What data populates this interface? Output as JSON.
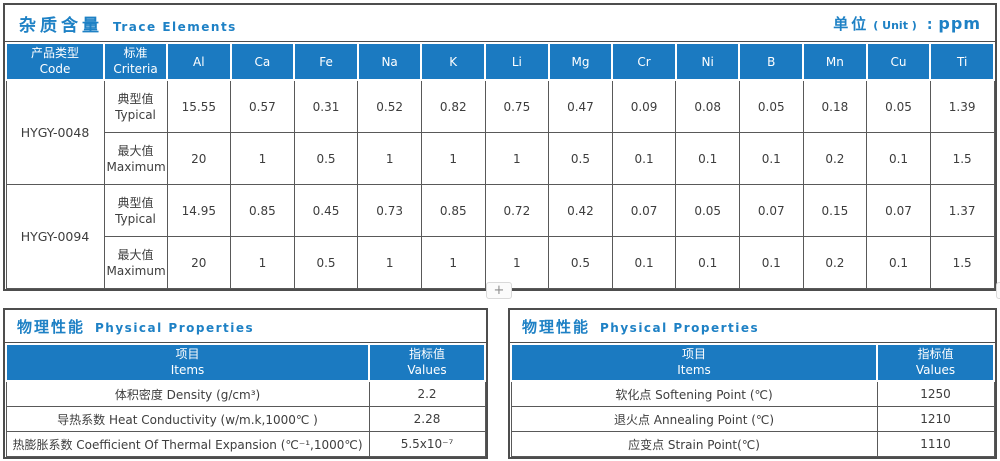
{
  "accent_color": "#1b7ac1",
  "title_color": "#1e81c5",
  "trace": {
    "title_cn": "杂质含量",
    "title_en": "Trace Elements",
    "unit": {
      "cn": "单位",
      "paren": "( Unit )",
      "colon": ":",
      "value": "ppm"
    },
    "col_code": {
      "cn": "产品类型",
      "en": "Code"
    },
    "col_criteria": {
      "cn": "标准",
      "en": "Criteria"
    },
    "elements": [
      "Al",
      "Ca",
      "Fe",
      "Na",
      "K",
      "Li",
      "Mg",
      "Cr",
      "Ni",
      "B",
      "Mn",
      "Cu",
      "Ti"
    ],
    "label_typical": {
      "cn": "典型值",
      "en": "Typical"
    },
    "label_maximum": {
      "cn": "最大值",
      "en": "Maximum"
    },
    "rows": [
      {
        "code": "HYGY-0048",
        "typical": [
          "15.55",
          "0.57",
          "0.31",
          "0.52",
          "0.82",
          "0.75",
          "0.47",
          "0.09",
          "0.08",
          "0.05",
          "0.18",
          "0.05",
          "1.39"
        ],
        "maximum": [
          "20",
          "1",
          "0.5",
          "1",
          "1",
          "1",
          "0.5",
          "0.1",
          "0.1",
          "0.1",
          "0.2",
          "0.1",
          "1.5"
        ]
      },
      {
        "code": "HYGY-0094",
        "typical": [
          "14.95",
          "0.85",
          "0.45",
          "0.73",
          "0.85",
          "0.72",
          "0.42",
          "0.07",
          "0.05",
          "0.07",
          "0.15",
          "0.07",
          "1.37"
        ],
        "maximum": [
          "20",
          "1",
          "0.5",
          "1",
          "1",
          "1",
          "0.5",
          "0.1",
          "0.1",
          "0.1",
          "0.2",
          "0.1",
          "1.5"
        ]
      }
    ]
  },
  "physical_left": {
    "title_cn": "物理性能",
    "title_en": "Physical Properties",
    "col_items": {
      "cn": "项目",
      "en": "Items"
    },
    "col_values": {
      "cn": "指标值",
      "en": "Values"
    },
    "rows": [
      {
        "item": "体积密度 Density (g/cm³)",
        "value": "2.2"
      },
      {
        "item": "导热系数 Heat Conductivity (w/m.k,1000℃ )",
        "value": "2.28"
      },
      {
        "item": "热膨胀系数 Coefficient Of Thermal Expansion (℃⁻¹,1000℃)",
        "value": "5.5x10⁻⁷"
      }
    ]
  },
  "physical_right": {
    "title_cn": "物理性能",
    "title_en": "Physical Properties",
    "col_items": {
      "cn": "项目",
      "en": "Items"
    },
    "col_values": {
      "cn": "指标值",
      "en": "Values"
    },
    "rows": [
      {
        "item": "软化点 Softening Point (℃)",
        "value": "1250"
      },
      {
        "item": "退火点 Annealing Point (℃)",
        "value": "1210"
      },
      {
        "item": "应变点 Strain Point(℃)",
        "value": "1110"
      }
    ]
  },
  "add_button_label": "+"
}
